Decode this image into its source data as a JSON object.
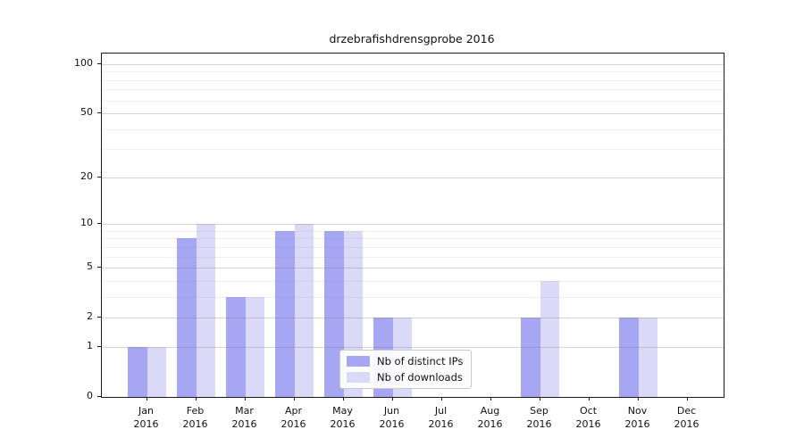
{
  "figure": {
    "title": "drzebrafishdrensgprobe 2016"
  },
  "chart_data": {
    "type": "bar",
    "title": "drzebrafishdrensgprobe 2016",
    "xlabel": "",
    "ylabel": "",
    "categories": [
      "Jan",
      "Feb",
      "Mar",
      "Apr",
      "May",
      "Jun",
      "Jul",
      "Aug",
      "Sep",
      "Oct",
      "Nov",
      "Dec"
    ],
    "x_year": "2016",
    "series": [
      {
        "name": "Nb of distinct IPs",
        "color": "#a6a6f3",
        "values": [
          1,
          8,
          3,
          9,
          9,
          2,
          0,
          0,
          2,
          0,
          2,
          0
        ]
      },
      {
        "name": "Nb of downloads",
        "color": "#dadaf8",
        "values": [
          1,
          10,
          3,
          10,
          9,
          2,
          0,
          0,
          4,
          0,
          2,
          0
        ]
      }
    ],
    "yscale": "log10(1+v)",
    "ylim": [
      0,
      116
    ],
    "y_major_ticks": [
      0,
      1,
      2,
      5,
      10,
      20,
      50,
      100
    ],
    "y_minor_gridlines": [
      3,
      4,
      6,
      7,
      8,
      9,
      30,
      40,
      60,
      70,
      80,
      90
    ],
    "grid": "horizontal",
    "legend_position": "lower center",
    "colors": {
      "axis": "#1a1a1a",
      "major_grid": "rgba(120,120,120,0.32)",
      "minor_grid": "rgba(120,120,120,0.10)"
    }
  }
}
